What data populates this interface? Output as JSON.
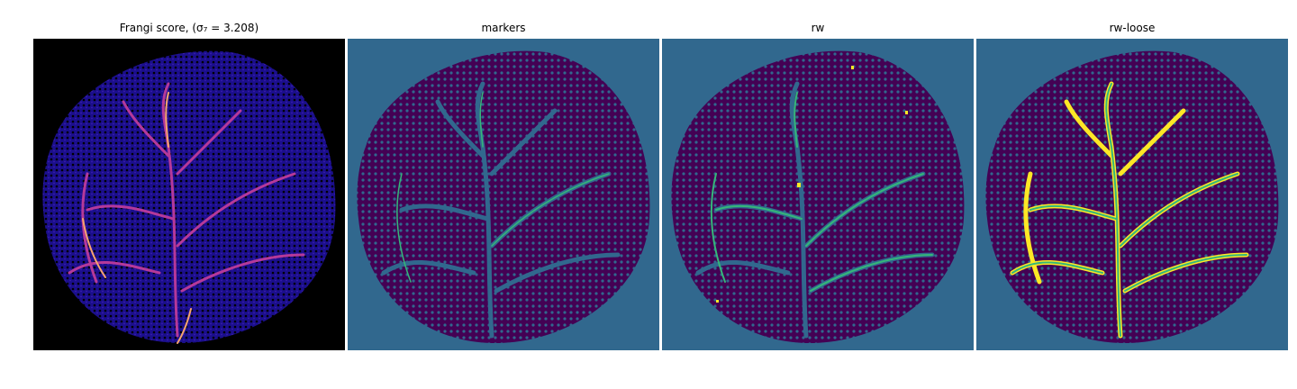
{
  "panels": [
    {
      "key": "frangi",
      "title": "Frangi score, (σ₇ = 3.208)",
      "colormap": "magma"
    },
    {
      "key": "markers",
      "title": "markers",
      "colormap": "viridis"
    },
    {
      "key": "rw",
      "title": "rw",
      "colormap": "viridis"
    },
    {
      "key": "rwloose",
      "title": "rw-loose",
      "colormap": "viridis"
    }
  ],
  "colors": {
    "frangi_background": "#000000",
    "frangi_tissue": "#1b0f8c",
    "frangi_vessel_low": "#7b2bd0",
    "frangi_vessel_high": "#f7a46e",
    "viridis_background": "#31688e",
    "viridis_dark": "#440154",
    "viridis_green": "#35b779",
    "viridis_yellow": "#fde725"
  }
}
